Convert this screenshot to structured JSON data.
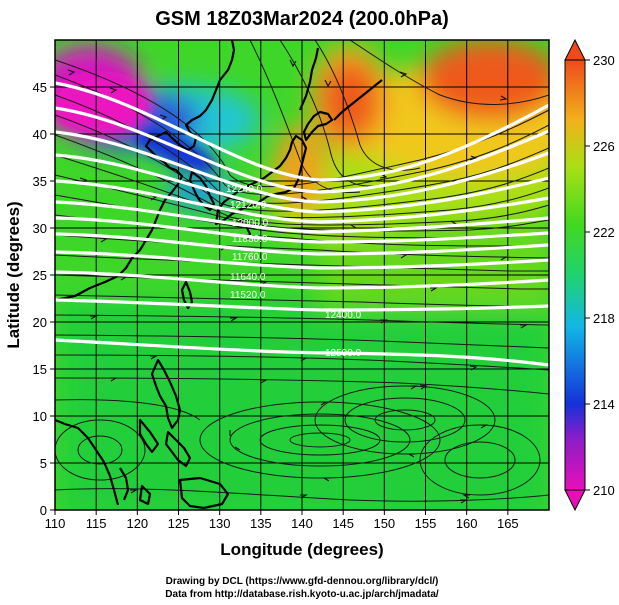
{
  "chart_data": {
    "type": "heatmap",
    "title": "GSM 18Z03Mar2024 (200.0hPa)",
    "xlabel": "Longitude (degrees)",
    "ylabel": "Latitude  (degrees)",
    "xlim": [
      110,
      170
    ],
    "ylim": [
      0,
      50
    ],
    "x_ticks": [
      110,
      115,
      120,
      125,
      130,
      135,
      140,
      145,
      150,
      155,
      160,
      165
    ],
    "y_ticks": [
      0,
      5,
      10,
      15,
      20,
      25,
      30,
      35,
      40,
      45
    ],
    "grid": true,
    "colorbar": {
      "min": 210,
      "max": 230,
      "ticks": [
        210,
        214,
        218,
        222,
        226,
        230
      ],
      "colors": [
        "#e80fb8",
        "#1531d8",
        "#12b7e6",
        "#1fd36e",
        "#44d81e",
        "#a8e015",
        "#f2b21a",
        "#ee4a1c"
      ]
    },
    "contours": [
      {
        "label": "12600.0",
        "lat_west": 45.0,
        "lat_east": 42.0
      },
      {
        "label": "12480.0",
        "lat_west": 42.8,
        "lat_east": 40.0
      },
      {
        "label": "12360.0",
        "lat_west": 40.2,
        "lat_east": 38.0
      },
      {
        "label": "12240.0",
        "lat_west": 37.8,
        "lat_east": 35.0
      },
      {
        "label": "12120.0",
        "lat_west": 35.0,
        "lat_east": 33.0
      },
      {
        "label": "12000.0",
        "lat_west": 32.8,
        "lat_east": 30.8
      },
      {
        "label": "11880.0",
        "lat_west": 31.2,
        "lat_east": 29.5
      },
      {
        "label": "11760.0",
        "lat_west": 29.5,
        "lat_east": 28.2
      },
      {
        "label": "11640.0",
        "lat_west": 27.8,
        "lat_east": 26.6
      },
      {
        "label": "11520.0",
        "lat_west": 25.8,
        "lat_east": 24.7
      },
      {
        "label": "12400.0",
        "lat_west": 24.2,
        "lat_east": 23.4
      },
      {
        "label": "12500.0",
        "lat_west": 20.0,
        "lat_east": 15.5
      }
    ],
    "credits": [
      "Drawing by DCL (https://www.gfd-dennou.org/library/dcl/)",
      "Data from http://database.rish.kyoto-u.ac.jp/arch/jmadata/"
    ]
  }
}
